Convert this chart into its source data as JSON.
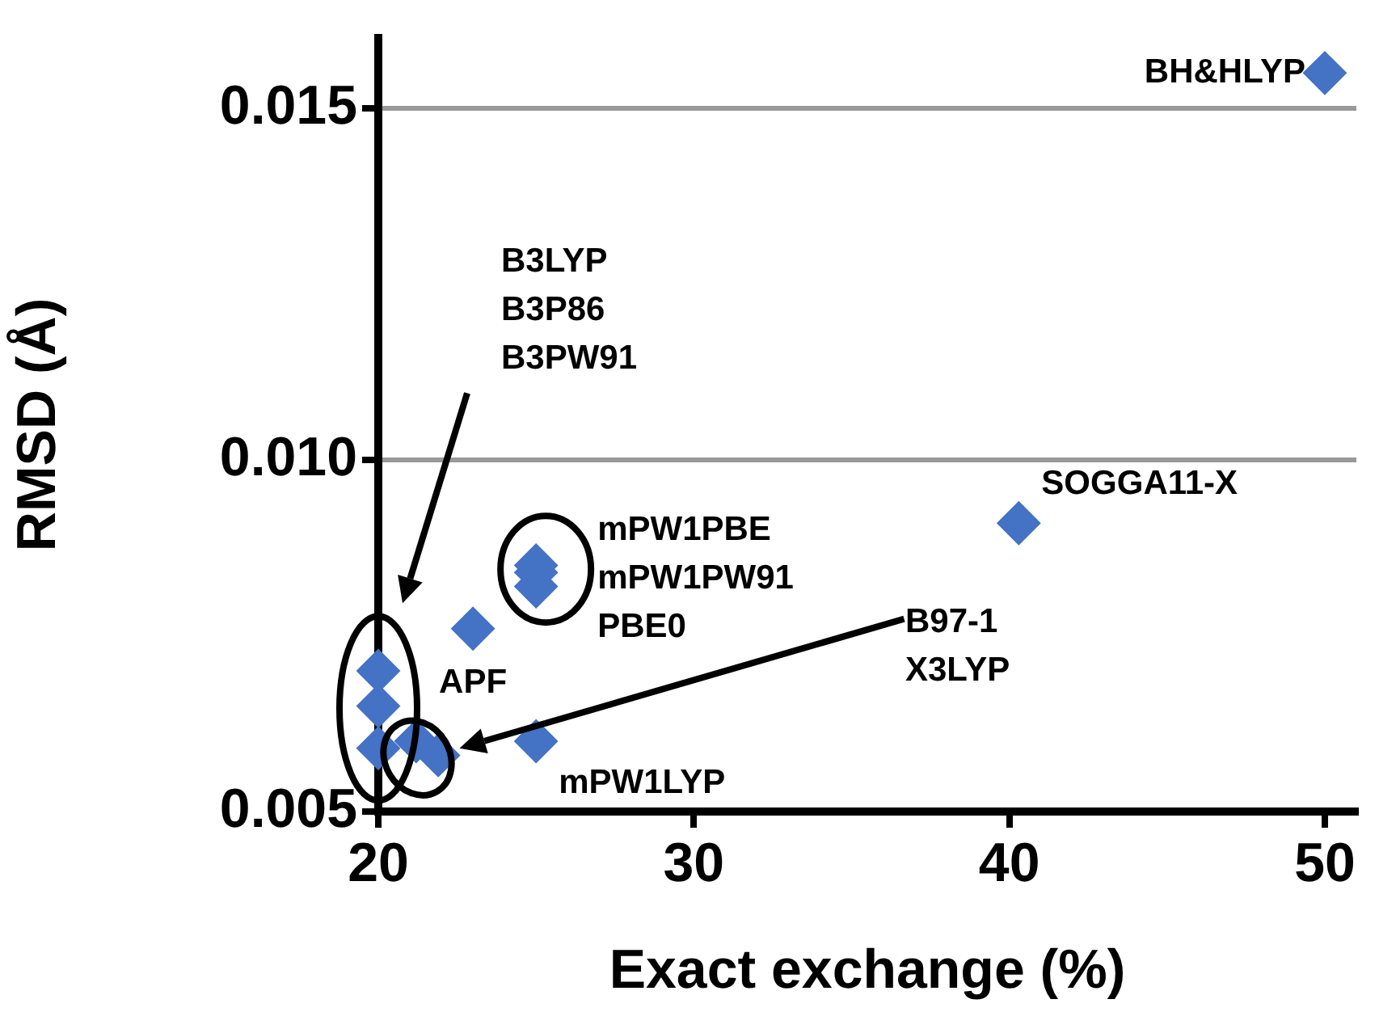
{
  "chart_data": {
    "type": "scatter",
    "xlabel": "Exact exchange (%)",
    "ylabel": "RMSD (Å)",
    "x": [
      20,
      20,
      20,
      21.2,
      21.9,
      23,
      25,
      25,
      25,
      25,
      40.3,
      50
    ],
    "values": [
      0.007,
      0.0065,
      0.0059,
      0.006,
      0.0058,
      0.0076,
      0.0085,
      0.0084,
      0.0082,
      0.006,
      0.0091,
      0.0155
    ],
    "color": "#4472c4",
    "marker": "diamond",
    "grid": "y",
    "legend": false,
    "xlim": [
      20,
      51
    ],
    "xticks": [
      20,
      30,
      40,
      50
    ],
    "ylim": [
      0.005,
      0.016
    ],
    "yticks": [
      {
        "value": 0.005,
        "label": "0.005"
      },
      {
        "value": 0.01,
        "label": "0.010"
      },
      {
        "value": 0.015,
        "label": "0.015"
      }
    ],
    "annotations": [
      {
        "text": "BH&HLYP",
        "x": 50,
        "y": 0.0155
      },
      {
        "text": "SOGGA11-X",
        "x": 40.3,
        "y": 0.0091
      },
      {
        "text": "APF",
        "x": 23,
        "y": 0.0076
      },
      {
        "text": "mPW1LYP",
        "x": 25,
        "y": 0.006
      },
      {
        "text": "mPW1PBE\nmPW1PW91\nPBE0",
        "x": 25,
        "y": 0.0084
      },
      "B3LYP\nB3P86\nB3PW91",
      "B97-1\nX3LYP"
    ]
  }
}
